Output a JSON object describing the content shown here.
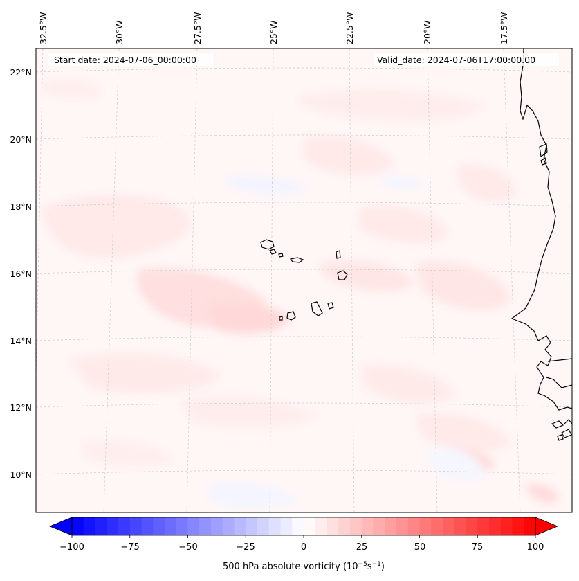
{
  "header": {
    "start_label": "Start date: 2024-07-06_00:00:00",
    "valid_label": "Valid_date: 2024-07-06T17:00:00.00"
  },
  "axes": {
    "lon_labels": [
      "32.5°W",
      "30°W",
      "27.5°W",
      "25°W",
      "22.5°W",
      "20°W",
      "17.5°W"
    ],
    "lat_labels": [
      "22°N",
      "20°N",
      "18°N",
      "16°N",
      "14°N",
      "12°N",
      "10°N"
    ]
  },
  "colorbar": {
    "ticks": [
      "−100",
      "−75",
      "−50",
      "−25",
      "0",
      "25",
      "50",
      "75",
      "100"
    ],
    "label": "500 hPa absolute vorticity (10",
    "label_exp1": "−5",
    "label_mid": "s",
    "label_exp2": "−1",
    "label_end": ")",
    "min_color": "#0000ff",
    "mid_color": "#ffffff",
    "max_color": "#ff0000"
  },
  "colors": {
    "background_field": "#fff6f6",
    "positive_light": "#ffe9e9",
    "positive_medium": "#ffdcdc",
    "negative_light": "#f3f4ff",
    "coastline": "#000000"
  }
}
